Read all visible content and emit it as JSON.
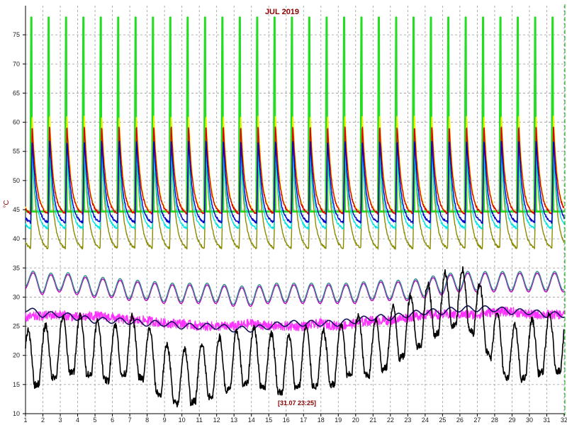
{
  "chart_data": {
    "type": "line",
    "title": "JUL 2019",
    "ylabel": "°C",
    "xlabel": "",
    "cursor_label": "[31.07 23:25]",
    "xlim": [
      1,
      32
    ],
    "ylim": [
      10,
      80
    ],
    "x_ticks": [
      1,
      2,
      3,
      4,
      5,
      6,
      7,
      8,
      9,
      10,
      11,
      12,
      13,
      14,
      15,
      16,
      17,
      18,
      19,
      20,
      21,
      22,
      23,
      24,
      25,
      26,
      27,
      28,
      29,
      30,
      31,
      32
    ],
    "y_ticks": [
      10,
      15,
      20,
      25,
      30,
      35,
      40,
      45,
      50,
      55,
      60,
      65,
      70,
      75
    ],
    "grid": true,
    "grid_style": "dashed",
    "legend": "none",
    "series": [
      {
        "color": "#22dd22",
        "style": "daily-peak",
        "low": 44,
        "peak": 78.5
      },
      {
        "color": "#8b8b00",
        "style": "daily-sawtooth",
        "low": 38,
        "peak": 56
      },
      {
        "color": "#00e5e5",
        "style": "daily-sawtooth",
        "low": 41.5,
        "peak": 55
      },
      {
        "color": "#eeee00",
        "style": "daily-sawtooth",
        "low": 44,
        "peak": 62
      },
      {
        "color": "#dd0000",
        "style": "daily-sawtooth",
        "low": 44,
        "peak": 60
      },
      {
        "color": "#0000cc",
        "style": "daily-sawtooth",
        "low": 42.5,
        "peak": 57.5
      },
      {
        "color": "#c000c0",
        "style": "daily-wave",
        "values": [
          33.0,
          32.0,
          32.5,
          32.0,
          31.5,
          31.5,
          31.0,
          31.0,
          30.5,
          30.5,
          30.5,
          30.5,
          30.0,
          30.0,
          30.5,
          30.5,
          30.5,
          30.5,
          30.5,
          30.5,
          31.0,
          31.0,
          31.0,
          31.5,
          32.0,
          32.5,
          32.5,
          32.5,
          32.5,
          32.5,
          32.5,
          32.5
        ]
      },
      {
        "color": "#2e8b8b",
        "style": "daily-wave",
        "values": [
          33.3,
          32.3,
          32.8,
          32.3,
          31.8,
          31.8,
          31.3,
          31.3,
          30.8,
          30.8,
          30.8,
          30.8,
          30.3,
          30.3,
          30.8,
          30.8,
          30.8,
          30.8,
          30.8,
          30.8,
          31.3,
          31.3,
          31.3,
          31.8,
          32.3,
          32.8,
          32.8,
          32.8,
          32.8,
          32.8,
          32.8,
          32.8
        ]
      },
      {
        "color": "#ff33ff",
        "style": "noisy",
        "values": [
          26.5,
          26.8,
          27.0,
          26.5,
          26.8,
          26.5,
          26.0,
          26.0,
          25.5,
          25.5,
          25.0,
          25.0,
          25.0,
          25.5,
          25.0,
          25.0,
          25.0,
          25.5,
          25.0,
          25.5,
          26.0,
          26.0,
          26.5,
          27.0,
          27.0,
          27.0,
          27.0,
          27.5,
          27.5,
          27.0,
          27.0,
          27.0
        ]
      },
      {
        "color": "#14145a",
        "style": "smooth",
        "values": [
          28.0,
          27.0,
          27.0,
          26.5,
          26.0,
          26.0,
          25.8,
          25.5,
          25.5,
          25.0,
          25.0,
          25.0,
          24.5,
          24.5,
          25.0,
          25.5,
          25.5,
          25.5,
          25.5,
          26.0,
          26.5,
          26.5,
          27.0,
          27.5,
          27.5,
          28.0,
          28.0,
          28.0,
          27.5,
          27.5,
          27.0,
          27.0
        ]
      },
      {
        "color": "#000000",
        "style": "ambient",
        "values": [
          21,
          22,
          23.5,
          24,
          23,
          22,
          24,
          22,
          19,
          18,
          19,
          20,
          21,
          22,
          21,
          20,
          22,
          21,
          22,
          24,
          23,
          25,
          27,
          29,
          31,
          32,
          30,
          25,
          22,
          23,
          24,
          24
        ]
      }
    ]
  }
}
